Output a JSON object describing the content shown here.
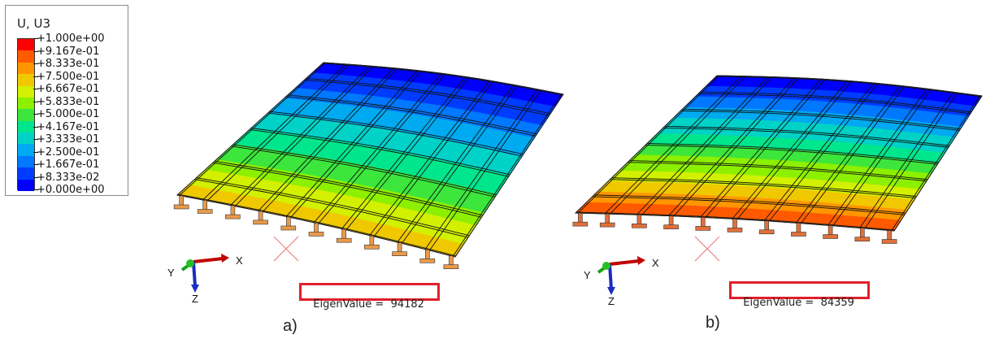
{
  "legend": {
    "title": "U, U3",
    "labels": [
      "+1.000e+00",
      "+9.167e-01",
      "+8.333e-01",
      "+7.500e-01",
      "+6.667e-01",
      "+5.833e-01",
      "+5.000e-01",
      "+4.167e-01",
      "+3.333e-01",
      "+2.500e-01",
      "+1.667e-01",
      "+8.333e-02",
      "+0.000e+00"
    ],
    "colors": [
      "#ff0000",
      "#ff5a00",
      "#ff9600",
      "#f0c800",
      "#d2f000",
      "#8cf000",
      "#3ce63c",
      "#00e68c",
      "#00d2c8",
      "#00aaf0",
      "#0078ff",
      "#003cff",
      "#0000ff"
    ]
  },
  "panels": [
    {
      "caption": "a)",
      "eigen_label": "EigenValue =",
      "eigen_value": "94182",
      "axes": {
        "x": "X",
        "y": "Y",
        "z": "Z"
      }
    },
    {
      "caption": "b)",
      "eigen_label": "EigenValue =",
      "eigen_value": "84359",
      "axes": {
        "x": "X",
        "y": "Y",
        "z": "Z"
      }
    }
  ]
}
